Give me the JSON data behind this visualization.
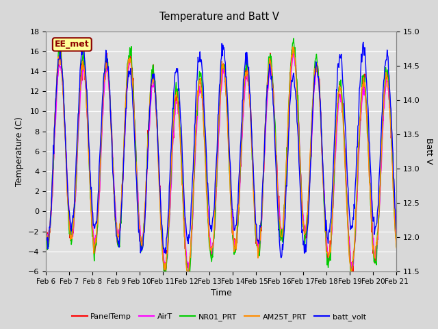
{
  "title": "Temperature and Batt V",
  "ylabel_left": "Temperature (C)",
  "ylabel_right": "Batt V",
  "xlabel": "Time",
  "ylim_left": [
    -6,
    18
  ],
  "ylim_right": [
    11.5,
    15.0
  ],
  "yticks_left": [
    -6,
    -4,
    -2,
    0,
    2,
    4,
    6,
    8,
    10,
    12,
    14,
    16,
    18
  ],
  "yticks_right": [
    11.5,
    12.0,
    12.5,
    13.0,
    13.5,
    14.0,
    14.5,
    15.0
  ],
  "xtick_labels": [
    "Feb 6",
    "Feb 7",
    "Feb 8",
    "Feb 9",
    "Feb 10",
    "Feb 11",
    "Feb 12",
    "Feb 13",
    "Feb 14",
    "Feb 15",
    "Feb 16",
    "Feb 17",
    "Feb 18",
    "Feb 19",
    "Feb 20",
    "Feb 21"
  ],
  "annotation_text": "EE_met",
  "annotation_color": "#8B0000",
  "annotation_bg": "#FFFF99",
  "bg_color": "#D8D8D8",
  "colors": {
    "PanelTemp": "#FF0000",
    "AirT": "#FF00FF",
    "NR01_PRT": "#00CC00",
    "AM25T_PRT": "#FF8C00",
    "batt_volt": "#0000FF"
  },
  "linewidth": 1.0,
  "legend_items": [
    "PanelTemp",
    "AirT",
    "NR01_PRT",
    "AM25T_PRT",
    "batt_volt"
  ],
  "n_points": 720
}
